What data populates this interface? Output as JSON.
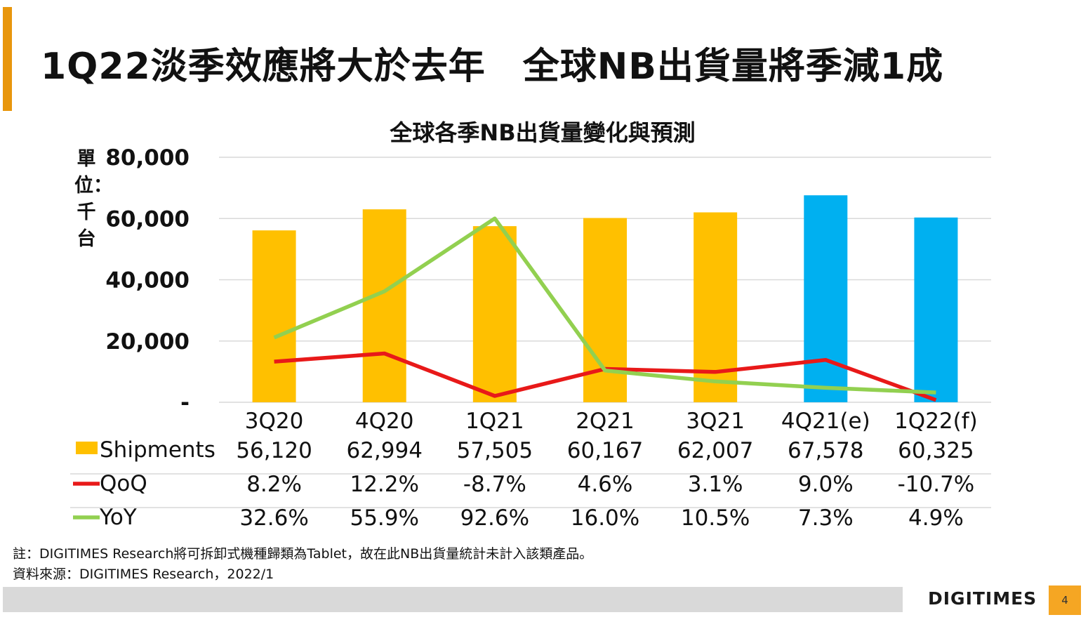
{
  "page": {
    "title": "1Q22淡季效應將大於去年　全球NB出貨量將季減1成",
    "chart_title": "全球各季NB出貨量變化與預測",
    "unit_label": "單位：千台",
    "footnote_1": "註：DIGITIMES Research將可拆卸式機種歸類為Tablet，故在此NB出貨量統計未計入該類產品。",
    "footnote_2": "資料來源：DIGITIMES Research，2022/1",
    "brand": "DIGITIMES",
    "page_number": "4"
  },
  "colors": {
    "accent": "#E8960C",
    "bar_actual": "#FFC000",
    "bar_forecast": "#00B0F0",
    "qoq_line": "#E81919",
    "yoy_line": "#92D050",
    "gridline": "#D9D9D9",
    "page_number_bg": "#F5A623"
  },
  "chart_data": {
    "type": "bar",
    "categories": [
      "3Q20",
      "4Q20",
      "1Q21",
      "2Q21",
      "3Q21",
      "4Q21(e)",
      "1Q22(f)"
    ],
    "ylim": [
      0,
      80000
    ],
    "yticks": [
      0,
      20000,
      40000,
      60000,
      80000
    ],
    "ytick_labels": [
      "-",
      "20,000",
      "40,000",
      "60,000",
      "80,000"
    ],
    "grid": true,
    "legend_position": "table-below",
    "series": [
      {
        "name": "Shipments",
        "type": "bar",
        "values": [
          56120,
          62994,
          57505,
          60167,
          62007,
          67578,
          60325
        ],
        "labels": [
          "56,120",
          "62,994",
          "57,505",
          "60,167",
          "62,007",
          "67,578",
          "60,325"
        ],
        "forecast_from_index": 5
      },
      {
        "name": "QoQ",
        "type": "line",
        "values": [
          8.2,
          12.2,
          -8.7,
          4.6,
          3.1,
          9.0,
          -10.7
        ],
        "labels": [
          "8.2%",
          "12.2%",
          "-8.7%",
          "4.6%",
          "3.1%",
          "9.0%",
          "-10.7%"
        ]
      },
      {
        "name": "YoY",
        "type": "line",
        "values": [
          32.6,
          55.9,
          92.6,
          16.0,
          10.5,
          7.3,
          4.9
        ],
        "labels": [
          "32.6%",
          "55.9%",
          "92.6%",
          "16.0%",
          "10.5%",
          "7.3%",
          "4.9%"
        ]
      }
    ]
  }
}
